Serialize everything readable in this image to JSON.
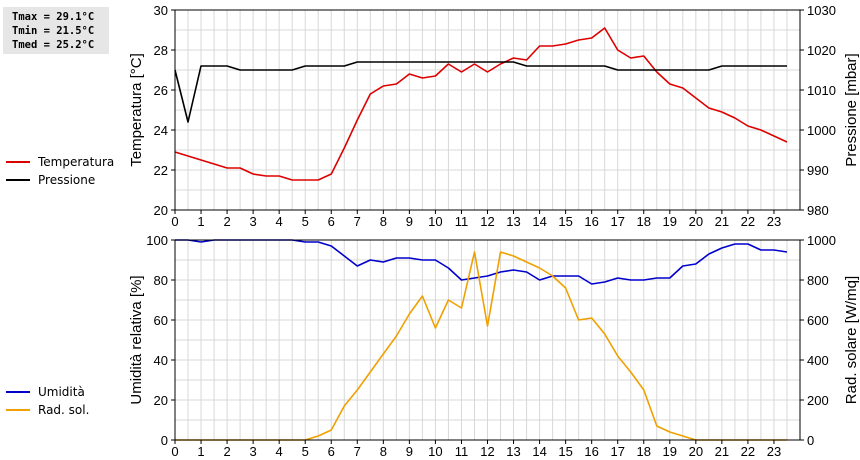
{
  "stats": {
    "tmax": "Tmax = 29.1°C",
    "tmin": "Tmin = 21.5°C",
    "tmed": "Tmed = 25.2°C"
  },
  "chart_data": [
    {
      "type": "line",
      "ylabel": "Temperatura [°C]",
      "y2label": "Pressione [mbar]",
      "ylim": [
        20,
        30
      ],
      "y2lim": [
        980,
        1030
      ],
      "xlim": [
        0,
        24
      ],
      "yticks": [
        20,
        22,
        24,
        26,
        28,
        30
      ],
      "y2ticks": [
        980,
        990,
        1000,
        1010,
        1020,
        1030
      ],
      "xticks": [
        0,
        1,
        2,
        3,
        4,
        5,
        6,
        7,
        8,
        9,
        10,
        11,
        12,
        13,
        14,
        15,
        16,
        17,
        18,
        19,
        20,
        21,
        22,
        23
      ],
      "grid": true,
      "legend": "left",
      "series": [
        {
          "name": "Temperatura",
          "axis": "left",
          "color": "#dd0000",
          "x": [
            0,
            0.5,
            1,
            1.5,
            2,
            2.5,
            3,
            3.5,
            4,
            4.5,
            5,
            5.5,
            6,
            6.5,
            7,
            7.5,
            8,
            8.5,
            9,
            9.5,
            10,
            10.5,
            11,
            11.5,
            12,
            12.5,
            13,
            13.5,
            14,
            14.5,
            15,
            15.5,
            16,
            16.5,
            17,
            17.5,
            18,
            18.5,
            19,
            19.5,
            20,
            20.5,
            21,
            21.5,
            22,
            22.5,
            23,
            23.5
          ],
          "values": [
            22.9,
            22.7,
            22.5,
            22.3,
            22.1,
            22.1,
            21.8,
            21.7,
            21.7,
            21.5,
            21.5,
            21.5,
            21.8,
            23.1,
            24.5,
            25.8,
            26.2,
            26.3,
            26.8,
            26.6,
            26.7,
            27.3,
            26.9,
            27.3,
            26.9,
            27.3,
            27.6,
            27.5,
            28.2,
            28.2,
            28.3,
            28.5,
            28.6,
            29.1,
            28.0,
            27.6,
            27.7,
            26.9,
            26.3,
            26.1,
            25.6,
            25.1,
            24.9,
            24.6,
            24.2,
            24.0,
            23.7,
            23.4
          ]
        },
        {
          "name": "Pressione",
          "axis": "right",
          "color": "#000000",
          "x": [
            0,
            0.5,
            1,
            1.5,
            2,
            2.5,
            3,
            3.5,
            4,
            4.5,
            5,
            5.5,
            6,
            6.5,
            7,
            7.5,
            8,
            8.5,
            9,
            9.5,
            10,
            10.5,
            11,
            11.5,
            12,
            12.5,
            13,
            13.5,
            14,
            14.5,
            15,
            15.5,
            16,
            16.5,
            17,
            17.5,
            18,
            18.5,
            19,
            19.5,
            20,
            20.5,
            21,
            21.5,
            22,
            22.5,
            23,
            23.5
          ],
          "values": [
            1015,
            1002,
            1016,
            1016,
            1016,
            1015,
            1015,
            1015,
            1015,
            1015,
            1016,
            1016,
            1016,
            1016,
            1017,
            1017,
            1017,
            1017,
            1017,
            1017,
            1017,
            1017,
            1017,
            1017,
            1017,
            1017,
            1017,
            1016,
            1016,
            1016,
            1016,
            1016,
            1016,
            1016,
            1015,
            1015,
            1015,
            1015,
            1015,
            1015,
            1015,
            1015,
            1016,
            1016,
            1016,
            1016,
            1016,
            1016
          ]
        }
      ]
    },
    {
      "type": "line",
      "ylabel": "Umidità relativa [%]",
      "y2label": "Rad. solare [W/mq]",
      "ylim": [
        0,
        100
      ],
      "y2lim": [
        0,
        1000
      ],
      "xlim": [
        0,
        24
      ],
      "yticks": [
        0,
        20,
        40,
        60,
        80,
        100
      ],
      "y2ticks": [
        0,
        200,
        400,
        600,
        800,
        1000
      ],
      "xticks": [
        0,
        1,
        2,
        3,
        4,
        5,
        6,
        7,
        8,
        9,
        10,
        11,
        12,
        13,
        14,
        15,
        16,
        17,
        18,
        19,
        20,
        21,
        22,
        23
      ],
      "grid": true,
      "legend": "left",
      "series": [
        {
          "name": "Umidità",
          "axis": "left",
          "color": "#0000cc",
          "x": [
            0,
            0.5,
            1,
            1.5,
            2,
            2.5,
            3,
            3.5,
            4,
            4.5,
            5,
            5.5,
            6,
            6.5,
            7,
            7.5,
            8,
            8.5,
            9,
            9.5,
            10,
            10.5,
            11,
            11.5,
            12,
            12.5,
            13,
            13.5,
            14,
            14.5,
            15,
            15.5,
            16,
            16.5,
            17,
            17.5,
            18,
            18.5,
            19,
            19.5,
            20,
            20.5,
            21,
            21.5,
            22,
            22.5,
            23,
            23.5
          ],
          "values": [
            100,
            100,
            99,
            100,
            100,
            100,
            100,
            100,
            100,
            100,
            99,
            99,
            97,
            92,
            87,
            90,
            89,
            91,
            91,
            90,
            90,
            86,
            80,
            81,
            82,
            84,
            85,
            84,
            80,
            82,
            82,
            82,
            78,
            79,
            81,
            80,
            80,
            81,
            81,
            87,
            88,
            93,
            96,
            98,
            98,
            95,
            95,
            94
          ]
        },
        {
          "name": "Rad. sol.",
          "axis": "right",
          "color": "#f0a000",
          "x": [
            0,
            0.5,
            1,
            1.5,
            2,
            2.5,
            3,
            3.5,
            4,
            4.5,
            5,
            5.5,
            6,
            6.5,
            7,
            7.5,
            8,
            8.5,
            9,
            9.5,
            10,
            10.5,
            11,
            11.5,
            12,
            12.5,
            13,
            13.5,
            14,
            14.5,
            15,
            15.5,
            16,
            16.5,
            17,
            17.5,
            18,
            18.5,
            19,
            19.5,
            20,
            20.5,
            21,
            21.5,
            22,
            22.5,
            23,
            23.5
          ],
          "values": [
            0,
            0,
            0,
            0,
            0,
            0,
            0,
            0,
            0,
            0,
            0,
            20,
            50,
            170,
            250,
            340,
            430,
            520,
            630,
            720,
            560,
            700,
            660,
            940,
            570,
            940,
            920,
            890,
            860,
            820,
            760,
            600,
            610,
            530,
            420,
            340,
            250,
            70,
            40,
            20,
            0,
            0,
            0,
            0,
            0,
            0,
            0,
            0
          ]
        }
      ]
    }
  ]
}
